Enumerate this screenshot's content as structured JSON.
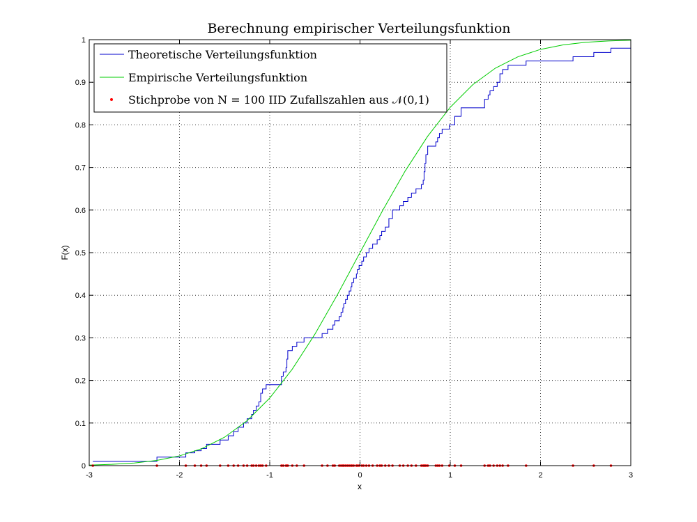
{
  "chart_data": {
    "type": "line",
    "title": "Berechnung empirischer Verteilungsfunktion",
    "xlabel": "x",
    "ylabel": "F(x)",
    "xlim": [
      -3,
      3
    ],
    "ylim": [
      0,
      1
    ],
    "x_ticks": [
      -3,
      -2,
      -1,
      0,
      1,
      2,
      3
    ],
    "y_ticks": [
      0,
      0.1,
      0.2,
      0.3,
      0.4,
      0.5,
      0.6,
      0.7,
      0.8,
      0.9,
      1
    ],
    "x_tick_labels": [
      "-3",
      "-2",
      "-1",
      "0",
      "1",
      "2",
      "3"
    ],
    "y_tick_labels": [
      "0",
      "0.1",
      "0.2",
      "0.3",
      "0.4",
      "0.5",
      "0.6",
      "0.7",
      "0.8",
      "0.9",
      "1"
    ],
    "grid": true,
    "legend_position": "top-left",
    "series": [
      {
        "name": "Theoretische Verteilungsfunktion",
        "kind": "step",
        "color": "#0000cc",
        "x": [
          -2.96,
          -2.25,
          -1.93,
          -1.83,
          -1.76,
          -1.7,
          -1.55,
          -1.46,
          -1.4,
          -1.35,
          -1.29,
          -1.25,
          -1.2,
          -1.18,
          -1.15,
          -1.12,
          -1.1,
          -1.08,
          -1.04,
          -0.87,
          -0.85,
          -0.82,
          -0.81,
          -0.8,
          -0.75,
          -0.7,
          -0.62,
          -0.42,
          -0.36,
          -0.3,
          -0.28,
          -0.23,
          -0.21,
          -0.19,
          -0.18,
          -0.16,
          -0.14,
          -0.12,
          -0.1,
          -0.09,
          -0.07,
          -0.04,
          -0.03,
          -0.01,
          0.02,
          0.04,
          0.07,
          0.1,
          0.14,
          0.19,
          0.22,
          0.24,
          0.28,
          0.32,
          0.36,
          0.44,
          0.48,
          0.53,
          0.57,
          0.62,
          0.68,
          0.7,
          0.71,
          0.72,
          0.73,
          0.75,
          0.84,
          0.86,
          0.88,
          0.91,
          0.99,
          1.05,
          1.12,
          1.38,
          1.42,
          1.44,
          1.48,
          1.52,
          1.55,
          1.58,
          1.64,
          1.84,
          2.36,
          2.59,
          2.78
        ],
        "y": [
          0.01,
          0.02,
          0.03,
          0.035,
          0.04,
          0.05,
          0.06,
          0.07,
          0.08,
          0.09,
          0.1,
          0.11,
          0.12,
          0.13,
          0.14,
          0.15,
          0.17,
          0.18,
          0.19,
          0.21,
          0.22,
          0.23,
          0.25,
          0.27,
          0.28,
          0.29,
          0.3,
          0.31,
          0.32,
          0.33,
          0.34,
          0.35,
          0.36,
          0.37,
          0.38,
          0.39,
          0.4,
          0.41,
          0.42,
          0.43,
          0.44,
          0.45,
          0.46,
          0.47,
          0.48,
          0.49,
          0.5,
          0.51,
          0.52,
          0.53,
          0.54,
          0.55,
          0.56,
          0.58,
          0.6,
          0.61,
          0.62,
          0.63,
          0.64,
          0.65,
          0.66,
          0.67,
          0.69,
          0.71,
          0.73,
          0.75,
          0.76,
          0.77,
          0.78,
          0.79,
          0.8,
          0.82,
          0.84,
          0.86,
          0.87,
          0.88,
          0.89,
          0.9,
          0.92,
          0.93,
          0.94,
          0.95,
          0.96,
          0.97,
          0.98
        ]
      },
      {
        "name": "Empirische Verteilungsfunktion",
        "kind": "line",
        "color": "#00cc00",
        "x": [
          -3,
          -2.75,
          -2.5,
          -2.25,
          -2,
          -1.75,
          -1.5,
          -1.25,
          -1,
          -0.75,
          -0.5,
          -0.25,
          0,
          0.25,
          0.5,
          0.75,
          1,
          1.25,
          1.5,
          1.75,
          2,
          2.25,
          2.5,
          2.75,
          3
        ],
        "y": [
          0.0013,
          0.003,
          0.0062,
          0.0122,
          0.0228,
          0.0401,
          0.0668,
          0.1056,
          0.1587,
          0.2266,
          0.3085,
          0.4013,
          0.5,
          0.5987,
          0.6915,
          0.7734,
          0.8413,
          0.8944,
          0.9332,
          0.9599,
          0.9772,
          0.9878,
          0.9938,
          0.997,
          0.9987
        ]
      },
      {
        "name": "Stichprobe von N = 100 IID Zufallszahlen aus 𝒩(0,1)",
        "kind": "scatter",
        "color": "#ff0000",
        "x": [
          -2.96,
          -2.25,
          -1.93,
          -1.83,
          -1.76,
          -1.7,
          -1.55,
          -1.46,
          -1.4,
          -1.35,
          -1.29,
          -1.25,
          -1.2,
          -1.18,
          -1.15,
          -1.12,
          -1.1,
          -1.08,
          -1.04,
          -0.87,
          -0.85,
          -0.82,
          -0.81,
          -0.8,
          -0.75,
          -0.7,
          -0.62,
          -0.42,
          -0.36,
          -0.3,
          -0.28,
          -0.23,
          -0.21,
          -0.19,
          -0.18,
          -0.16,
          -0.14,
          -0.12,
          -0.1,
          -0.09,
          -0.07,
          -0.04,
          -0.03,
          -0.01,
          0.02,
          0.04,
          0.07,
          0.1,
          0.14,
          0.19,
          0.22,
          0.24,
          0.28,
          0.32,
          0.36,
          0.44,
          0.48,
          0.53,
          0.57,
          0.62,
          0.68,
          0.7,
          0.71,
          0.72,
          0.73,
          0.75,
          0.84,
          0.86,
          0.88,
          0.91,
          0.99,
          1.05,
          1.12,
          1.38,
          1.42,
          1.44,
          1.48,
          1.52,
          1.55,
          1.58,
          1.64,
          1.84,
          2.36,
          2.59,
          2.78
        ],
        "y": [
          0,
          0,
          0,
          0,
          0,
          0,
          0,
          0,
          0,
          0,
          0,
          0,
          0,
          0,
          0,
          0,
          0,
          0,
          0,
          0,
          0,
          0,
          0,
          0,
          0,
          0,
          0,
          0,
          0,
          0,
          0,
          0,
          0,
          0,
          0,
          0,
          0,
          0,
          0,
          0,
          0,
          0,
          0,
          0,
          0,
          0,
          0,
          0,
          0,
          0,
          0,
          0,
          0,
          0,
          0,
          0,
          0,
          0,
          0,
          0,
          0,
          0,
          0,
          0,
          0,
          0,
          0,
          0,
          0,
          0,
          0,
          0,
          0,
          0,
          0,
          0,
          0,
          0,
          0,
          0,
          0,
          0,
          0,
          0,
          0
        ]
      }
    ]
  }
}
